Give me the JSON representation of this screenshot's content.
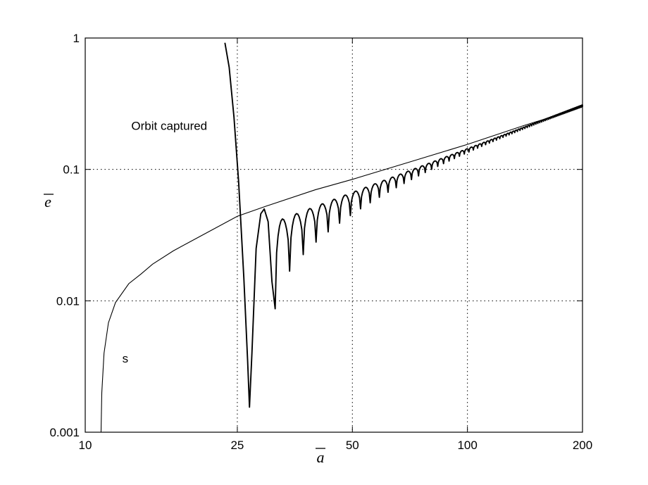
{
  "chart_data": {
    "type": "line",
    "xlabel": "a",
    "ylabel": "e",
    "xscale": "log",
    "yscale": "log",
    "xlim": [
      10,
      200
    ],
    "ylim": [
      0.001,
      1
    ],
    "grid": "dotted at 25, 50, 100 on x and 0.01, 0.1 on y",
    "xticks": [
      {
        "value": 10,
        "label": "10"
      },
      {
        "value": 25,
        "label": "25"
      },
      {
        "value": 50,
        "label": "50"
      },
      {
        "value": 100,
        "label": "100"
      },
      {
        "value": 200,
        "label": "200"
      }
    ],
    "yticks": [
      {
        "value": 0.001,
        "label": "0.001"
      },
      {
        "value": 0.01,
        "label": "0.01"
      },
      {
        "value": 0.1,
        "label": "0.1"
      },
      {
        "value": 1,
        "label": "1"
      }
    ],
    "annotations": [
      {
        "text": "Orbit captured",
        "x": 13.2,
        "y": 0.2
      },
      {
        "text": "s",
        "x": 12.5,
        "y": 0.0034
      }
    ],
    "series": [
      {
        "role": "capture boundary",
        "x": [
          11.0,
          11.05,
          11.2,
          11.5,
          12,
          13,
          14,
          15,
          17,
          20,
          25,
          30,
          40,
          50,
          70,
          100,
          140,
          180
        ],
        "y": [
          0.001,
          0.002,
          0.004,
          0.0068,
          0.0097,
          0.0135,
          0.016,
          0.019,
          0.024,
          0.031,
          0.044,
          0.053,
          0.07,
          0.084,
          0.113,
          0.155,
          0.215,
          0.27
        ]
      },
      {
        "role": "trajectory",
        "x": [
          23.2,
          23.8,
          24.5,
          25.2,
          26,
          26.6,
          26.9,
          27.3,
          28,
          28.8,
          29.4,
          30.1,
          30.8,
          31.4
        ],
        "y": [
          0.92,
          0.6,
          0.25,
          0.08,
          0.015,
          0.0035,
          0.00155,
          0.004,
          0.025,
          0.046,
          0.05,
          0.04,
          0.014,
          0.0087
        ],
        "oscillation": {
          "x_start": 31.4,
          "x_end": 200,
          "upper_start": 0.04,
          "upper_end": 0.31,
          "lower_start": 0.0087,
          "lower_end": 0.3,
          "period_start": 1.2,
          "period_end": 1.25
        }
      }
    ]
  }
}
